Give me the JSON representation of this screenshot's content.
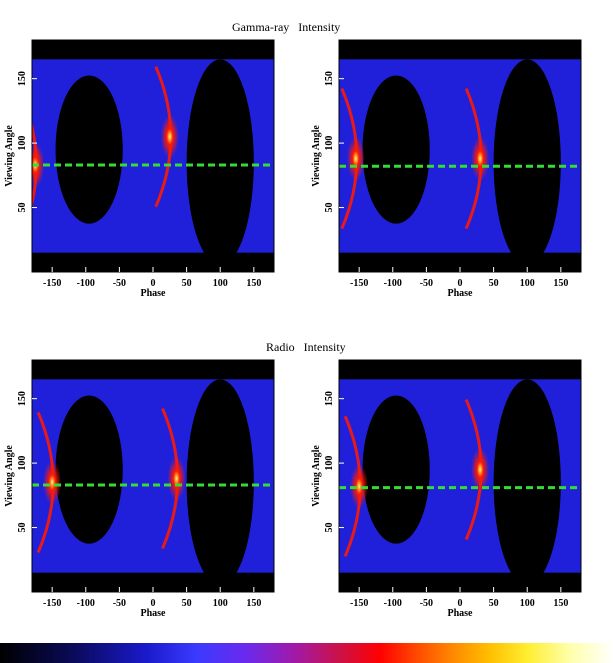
{
  "sections": [
    {
      "title": "Gamma-ray   Intensity"
    },
    {
      "title": "Radio   Intensity"
    }
  ],
  "axes": {
    "xlabel": "Phase",
    "ylabel": "Viewing Angle",
    "xticks": [
      "-150",
      "-100",
      "-50",
      "0",
      "50",
      "100",
      "150"
    ],
    "yticks": [
      "50",
      "100",
      "150"
    ]
  },
  "colors": {
    "background": "#000000",
    "emission": "#2323ee",
    "peak": "#ff1a00",
    "hot": "#ffff60",
    "line_of_sight": "#33dd33"
  },
  "chart_data": [
    {
      "type": "heatmap",
      "section": "Gamma-ray Intensity",
      "position": "top-left",
      "xlabel": "Phase",
      "ylabel": "Viewing Angle",
      "xlim": [
        -180,
        180
      ],
      "ylim": [
        0,
        180
      ],
      "dashed_line_y": 83,
      "peaks": [
        {
          "x": -175,
          "y": 83
        },
        {
          "x": 25,
          "y": 105
        }
      ]
    },
    {
      "type": "heatmap",
      "section": "Gamma-ray Intensity",
      "position": "top-right",
      "xlabel": "Phase",
      "ylabel": "Viewing Angle",
      "xlim": [
        -180,
        180
      ],
      "ylim": [
        0,
        180
      ],
      "dashed_line_y": 82,
      "peaks": [
        {
          "x": -155,
          "y": 88
        },
        {
          "x": 30,
          "y": 88
        }
      ]
    },
    {
      "type": "heatmap",
      "section": "Radio Intensity",
      "position": "bottom-left",
      "xlabel": "Phase",
      "ylabel": "Viewing Angle",
      "xlim": [
        -180,
        180
      ],
      "ylim": [
        0,
        180
      ],
      "dashed_line_y": 83,
      "peaks": [
        {
          "x": -150,
          "y": 85
        },
        {
          "x": 35,
          "y": 88
        }
      ]
    },
    {
      "type": "heatmap",
      "section": "Radio Intensity",
      "position": "bottom-right",
      "xlabel": "Phase",
      "ylabel": "Viewing Angle",
      "xlim": [
        -180,
        180
      ],
      "ylim": [
        0,
        180
      ],
      "dashed_line_y": 81,
      "peaks": [
        {
          "x": -150,
          "y": 82
        },
        {
          "x": 30,
          "y": 95
        }
      ]
    }
  ]
}
